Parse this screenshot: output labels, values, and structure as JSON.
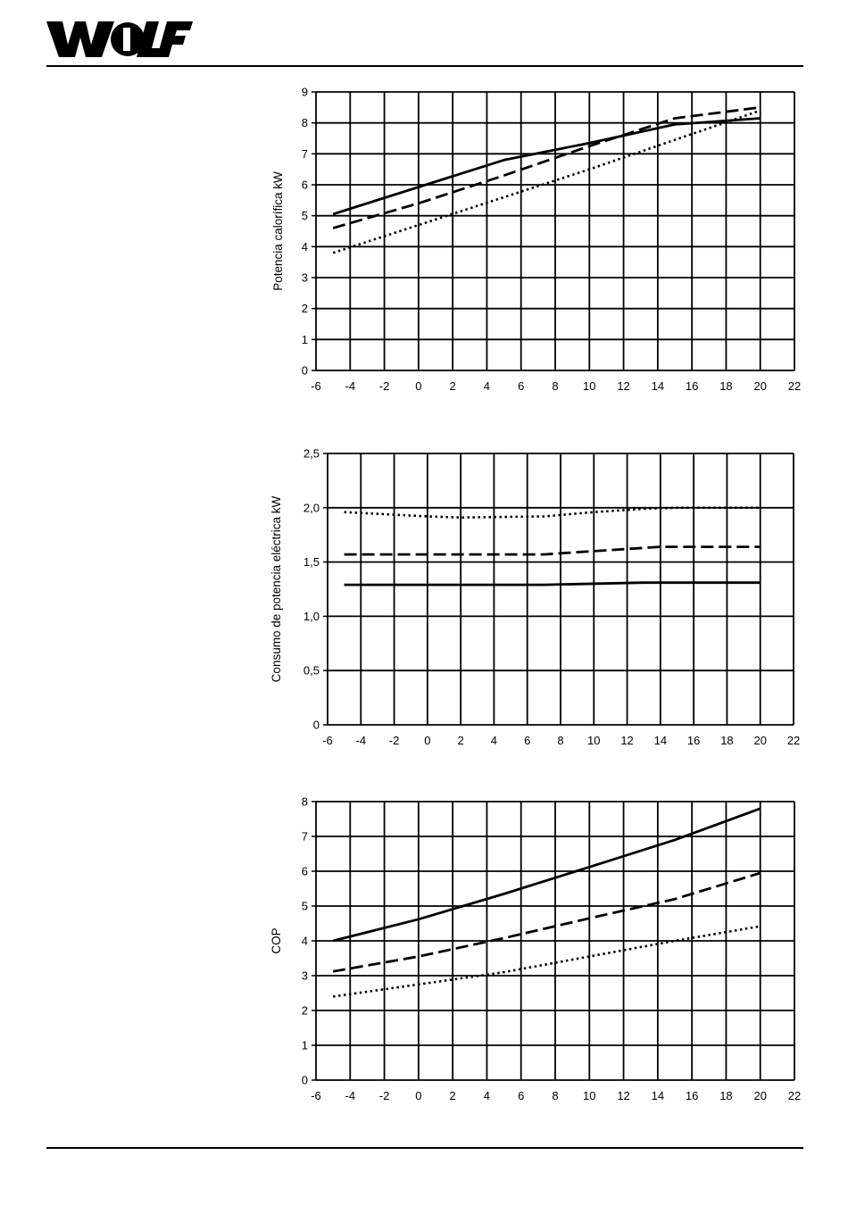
{
  "brand": {
    "name": "WOLF"
  },
  "chart_data": [
    {
      "type": "line",
      "title": "",
      "xlabel": "",
      "ylabel": "Potencia calorífica kW",
      "xlim": [
        -6,
        22
      ],
      "ylim": [
        0,
        9
      ],
      "x_ticks": [
        "-6",
        "-4",
        "-2",
        "0",
        "2",
        "4",
        "6",
        "8",
        "10",
        "12",
        "14",
        "16",
        "18",
        "20",
        "22"
      ],
      "y_ticks": [
        "0",
        "1",
        "2",
        "3",
        "4",
        "5",
        "6",
        "7",
        "8",
        "9"
      ],
      "grid": true,
      "series": [
        {
          "style": "solid",
          "x": [
            -5,
            5,
            10,
            15,
            20
          ],
          "y": [
            5.05,
            6.8,
            7.35,
            7.95,
            8.15
          ]
        },
        {
          "style": "dashed",
          "x": [
            -5,
            0,
            5,
            10,
            15,
            20
          ],
          "y": [
            4.6,
            5.4,
            6.3,
            7.25,
            8.15,
            8.5
          ]
        },
        {
          "style": "dotted",
          "x": [
            -5,
            0,
            5,
            10,
            15,
            20
          ],
          "y": [
            3.8,
            4.7,
            5.6,
            6.5,
            7.45,
            8.4
          ]
        }
      ]
    },
    {
      "type": "line",
      "title": "",
      "xlabel": "",
      "ylabel": "Consumo de potencia eléctrica kW",
      "xlim": [
        -6,
        22
      ],
      "ylim": [
        0,
        2.5
      ],
      "x_ticks": [
        "-6",
        "-4",
        "-2",
        "0",
        "2",
        "4",
        "6",
        "8",
        "10",
        "12",
        "14",
        "16",
        "18",
        "20",
        "22"
      ],
      "y_ticks": [
        "0",
        "0,5",
        "1,0",
        "1,5",
        "2,0",
        "2,5"
      ],
      "grid": true,
      "series": [
        {
          "style": "dotted",
          "x": [
            -5,
            0,
            2,
            7,
            10,
            13,
            15,
            20
          ],
          "y": [
            1.96,
            1.92,
            1.91,
            1.92,
            1.96,
            1.99,
            2.0,
            2.0
          ]
        },
        {
          "style": "dashed",
          "x": [
            -5,
            7,
            10,
            14,
            20
          ],
          "y": [
            1.57,
            1.57,
            1.6,
            1.64,
            1.64
          ]
        },
        {
          "style": "solid",
          "x": [
            -5,
            7,
            13,
            20
          ],
          "y": [
            1.29,
            1.29,
            1.31,
            1.31
          ]
        }
      ]
    },
    {
      "type": "line",
      "title": "",
      "xlabel": "",
      "ylabel": "COP",
      "xlim": [
        -6,
        22
      ],
      "ylim": [
        0,
        8
      ],
      "x_ticks": [
        "-6",
        "-4",
        "-2",
        "0",
        "2",
        "4",
        "6",
        "8",
        "10",
        "12",
        "14",
        "16",
        "18",
        "20",
        "22"
      ],
      "y_ticks": [
        "0",
        "1",
        "2",
        "3",
        "4",
        "5",
        "6",
        "7",
        "8"
      ],
      "grid": true,
      "series": [
        {
          "style": "solid",
          "x": [
            -5,
            0,
            5,
            10,
            15,
            20
          ],
          "y": [
            4.0,
            4.62,
            5.35,
            6.12,
            6.9,
            7.8
          ]
        },
        {
          "style": "dashed",
          "x": [
            -5,
            0,
            5,
            10,
            15,
            20
          ],
          "y": [
            3.12,
            3.55,
            4.08,
            4.65,
            5.2,
            5.95
          ]
        },
        {
          "style": "dotted",
          "x": [
            -5,
            0,
            5,
            10,
            15,
            20
          ],
          "y": [
            2.4,
            2.75,
            3.1,
            3.55,
            4.0,
            4.42
          ]
        }
      ]
    }
  ]
}
